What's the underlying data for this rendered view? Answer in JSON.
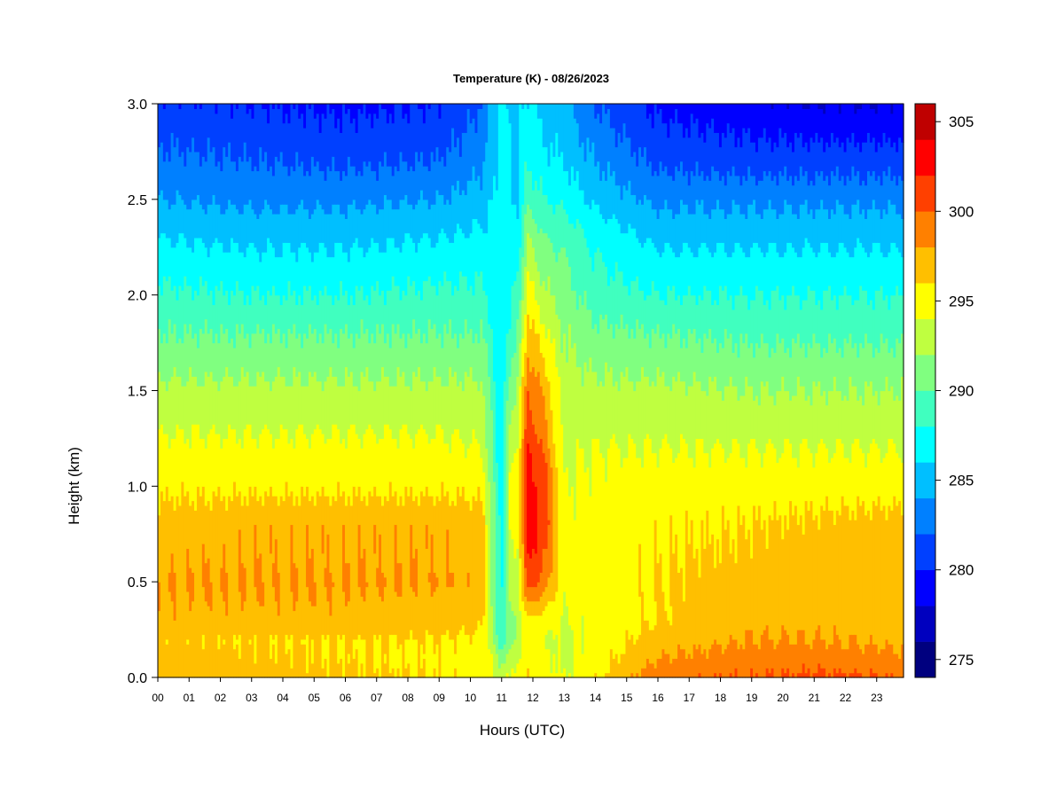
{
  "chart_data": {
    "type": "heatmap",
    "title": "Temperature (K) - 08/26/2023",
    "xlabel": "Hours (UTC)",
    "ylabel": "Height (km)",
    "x_ticks": [
      "00",
      "01",
      "02",
      "03",
      "04",
      "05",
      "06",
      "07",
      "08",
      "09",
      "10",
      "11",
      "12",
      "13",
      "14",
      "15",
      "16",
      "17",
      "18",
      "19",
      "20",
      "21",
      "22",
      "23"
    ],
    "y_ticks": [
      "0.0",
      "0.5",
      "1.0",
      "1.5",
      "2.0",
      "2.5",
      "3.0"
    ],
    "xlim": [
      0,
      23.9
    ],
    "ylim": [
      0,
      3.0
    ],
    "colorbar": {
      "levels_min": 274,
      "levels_max": 306,
      "level_step": 2,
      "tick_labels": [
        "275",
        "280",
        "285",
        "290",
        "295",
        "300",
        "305"
      ],
      "tick_values": [
        275,
        280,
        285,
        290,
        295,
        300,
        305
      ],
      "colors": [
        "#00007f",
        "#0000bf",
        "#0000ff",
        "#0040ff",
        "#0080ff",
        "#00bfff",
        "#00ffff",
        "#40ffbf",
        "#80ff80",
        "#bfff40",
        "#ffff00",
        "#ffbf00",
        "#ff8000",
        "#ff4000",
        "#ff0000",
        "#bf0000"
      ]
    },
    "profile_heights_km": [
      0.0,
      0.1,
      0.2,
      0.3,
      0.5,
      0.8,
      1.0,
      1.2,
      1.5,
      1.8,
      2.0,
      2.3,
      2.5,
      2.7,
      3.0
    ],
    "profiles": [
      {
        "hour": 0.0,
        "temps_k": [
          297.5,
          297.0,
          296.5,
          297.5,
          298.0,
          297.0,
          295.5,
          294.5,
          292.5,
          290.0,
          288.5,
          286.0,
          284.0,
          282.5,
          280.5
        ]
      },
      {
        "hour": 3.0,
        "temps_k": [
          297.0,
          296.5,
          296.0,
          297.5,
          298.0,
          297.5,
          295.5,
          294.5,
          292.5,
          290.0,
          288.0,
          285.5,
          283.5,
          282.0,
          280.0
        ]
      },
      {
        "hour": 6.0,
        "temps_k": [
          296.5,
          296.0,
          296.0,
          297.5,
          298.0,
          297.5,
          295.5,
          294.5,
          292.5,
          290.0,
          288.0,
          285.5,
          283.5,
          281.5,
          279.5
        ]
      },
      {
        "hour": 9.0,
        "temps_k": [
          296.0,
          295.5,
          296.0,
          297.0,
          298.0,
          297.5,
          295.5,
          294.5,
          292.5,
          290.0,
          288.5,
          286.0,
          284.0,
          282.0,
          280.0
        ]
      },
      {
        "hour": 10.4,
        "temps_k": [
          295.0,
          295.0,
          295.5,
          296.5,
          297.5,
          297.0,
          295.5,
          294.0,
          292.5,
          290.0,
          288.5,
          286.5,
          285.0,
          283.5,
          282.0
        ]
      },
      {
        "hour": 10.75,
        "temps_k": [
          294.0,
          293.5,
          292.5,
          291.5,
          291.0,
          290.5,
          290.0,
          289.5,
          289.0,
          288.0,
          287.0,
          286.5,
          286.0,
          285.5,
          285.0
        ]
      },
      {
        "hour": 11.0,
        "temps_k": [
          293.5,
          291.0,
          288.0,
          287.5,
          287.0,
          287.0,
          286.5,
          286.0,
          286.0,
          286.0,
          286.5,
          287.0,
          287.0,
          287.0,
          287.0
        ]
      },
      {
        "hour": 11.3,
        "temps_k": [
          294.0,
          292.5,
          291.5,
          292.0,
          293.0,
          294.5,
          294.5,
          293.0,
          291.0,
          289.0,
          287.5,
          286.5,
          286.0,
          286.0,
          286.0
        ]
      },
      {
        "hour": 11.55,
        "temps_k": [
          295.0,
          294.0,
          293.0,
          292.5,
          293.0,
          294.5,
          295.5,
          294.5,
          292.5,
          290.0,
          288.5,
          287.0,
          286.0,
          285.5,
          285.5
        ]
      },
      {
        "hour": 11.85,
        "temps_k": [
          296.0,
          295.0,
          294.5,
          295.5,
          301.5,
          303.5,
          303.0,
          302.0,
          300.0,
          297.0,
          295.0,
          292.0,
          289.5,
          288.0,
          286.5
        ]
      },
      {
        "hour": 12.4,
        "temps_k": [
          295.0,
          294.5,
          294.0,
          295.0,
          299.0,
          301.5,
          301.0,
          299.5,
          297.5,
          294.5,
          292.5,
          290.0,
          288.0,
          286.5,
          285.0
        ]
      },
      {
        "hour": 13.0,
        "temps_k": [
          294.0,
          293.5,
          293.5,
          294.0,
          294.5,
          294.5,
          294.0,
          293.5,
          293.0,
          292.0,
          291.0,
          289.5,
          287.5,
          286.0,
          284.5
        ]
      },
      {
        "hour": 14.0,
        "temps_k": [
          295.5,
          295.0,
          294.5,
          294.5,
          295.0,
          295.0,
          294.5,
          294.0,
          292.5,
          290.5,
          289.0,
          287.5,
          285.5,
          284.0,
          282.0
        ]
      },
      {
        "hour": 16.0,
        "temps_k": [
          299.5,
          298.0,
          297.0,
          296.0,
          296.0,
          295.5,
          295.0,
          294.0,
          292.5,
          290.0,
          288.0,
          285.5,
          283.5,
          281.5,
          279.5
        ]
      },
      {
        "hour": 19.0,
        "temps_k": [
          300.0,
          299.0,
          298.0,
          297.5,
          297.0,
          296.0,
          295.0,
          294.0,
          292.0,
          289.5,
          288.0,
          285.5,
          283.5,
          281.0,
          278.5
        ]
      },
      {
        "hour": 21.0,
        "temps_k": [
          300.5,
          299.0,
          298.0,
          297.5,
          297.5,
          296.5,
          295.0,
          294.0,
          292.0,
          289.5,
          288.0,
          285.5,
          283.5,
          281.0,
          278.0
        ]
      },
      {
        "hour": 23.9,
        "temps_k": [
          300.0,
          298.5,
          297.5,
          297.5,
          297.5,
          297.0,
          295.0,
          294.0,
          292.0,
          289.5,
          288.0,
          285.5,
          283.5,
          281.0,
          278.0
        ]
      }
    ]
  }
}
